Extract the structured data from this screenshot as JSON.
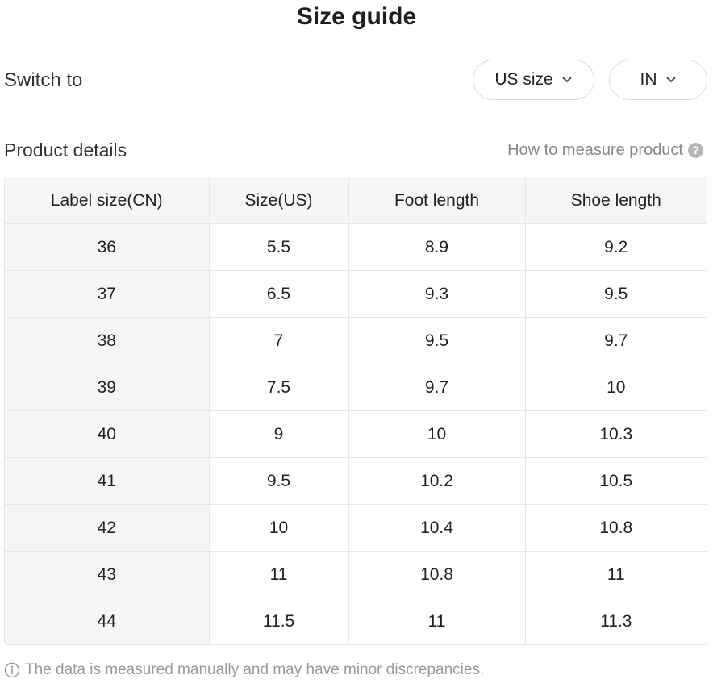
{
  "title": "Size guide",
  "switch": {
    "label": "Switch to",
    "size_system": "US size",
    "unit": "IN"
  },
  "details": {
    "label": "Product details",
    "measure_link": "How to measure product",
    "help_icon_glyph": "?"
  },
  "table": {
    "headers": [
      "Label size(CN)",
      "Size(US)",
      "Foot length",
      "Shoe length"
    ],
    "rows": [
      [
        "36",
        "5.5",
        "8.9",
        "9.2"
      ],
      [
        "37",
        "6.5",
        "9.3",
        "9.5"
      ],
      [
        "38",
        "7",
        "9.5",
        "9.7"
      ],
      [
        "39",
        "7.5",
        "9.7",
        "10"
      ],
      [
        "40",
        "9",
        "10",
        "10.3"
      ],
      [
        "41",
        "9.5",
        "10.2",
        "10.5"
      ],
      [
        "42",
        "10",
        "10.4",
        "10.8"
      ],
      [
        "43",
        "11",
        "10.8",
        "11"
      ],
      [
        "44",
        "11.5",
        "11",
        "11.3"
      ]
    ]
  },
  "footnote": "The data is measured manually and may have minor discrepancies.",
  "icons": {
    "dropdown": "chevron-down-icon",
    "help": "question-circle-icon",
    "info": "info-circle-icon"
  }
}
